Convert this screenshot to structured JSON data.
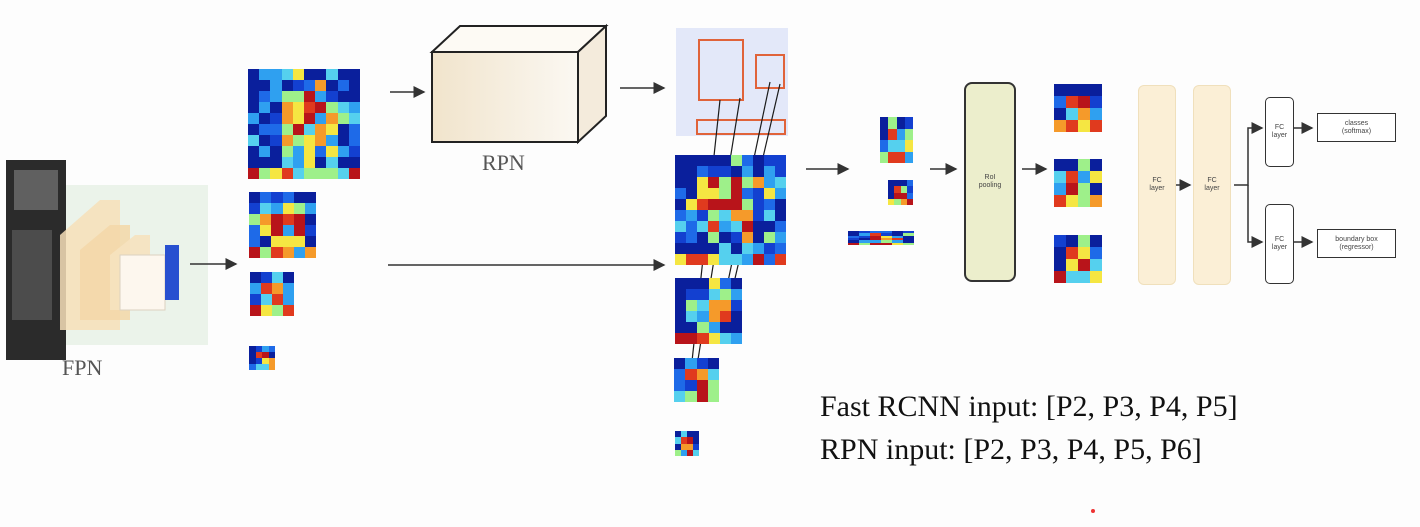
{
  "labels": {
    "fpn": "FPN",
    "rpn": "RPN",
    "roi_pooling": "RoI pooling",
    "fc_layer": "FC layer",
    "fc_layer_2": "FC layer",
    "fc_layer_top": "FC layer",
    "fc_layer_bottom": "FC layer",
    "classes": "classes",
    "classes_sub": "(softmax)",
    "bbox": "boundary box",
    "bbox_sub": "(regressor)"
  },
  "captions": {
    "fast_rcnn": "Fast RCNN input: [P2, P3, P4, P5]",
    "rpn_input": "RPN input: [P2, P3, P4, P5, P6]"
  },
  "colors": {
    "deep_blue": "#0a1f9c",
    "arrow": "#333333",
    "proposal_box": "#e0633a",
    "roi_box": "#eceecc",
    "fc_box": "#fbefd6",
    "rpn_block": "#f6efe2"
  },
  "icons": [
    "arrow-right-icon"
  ]
}
